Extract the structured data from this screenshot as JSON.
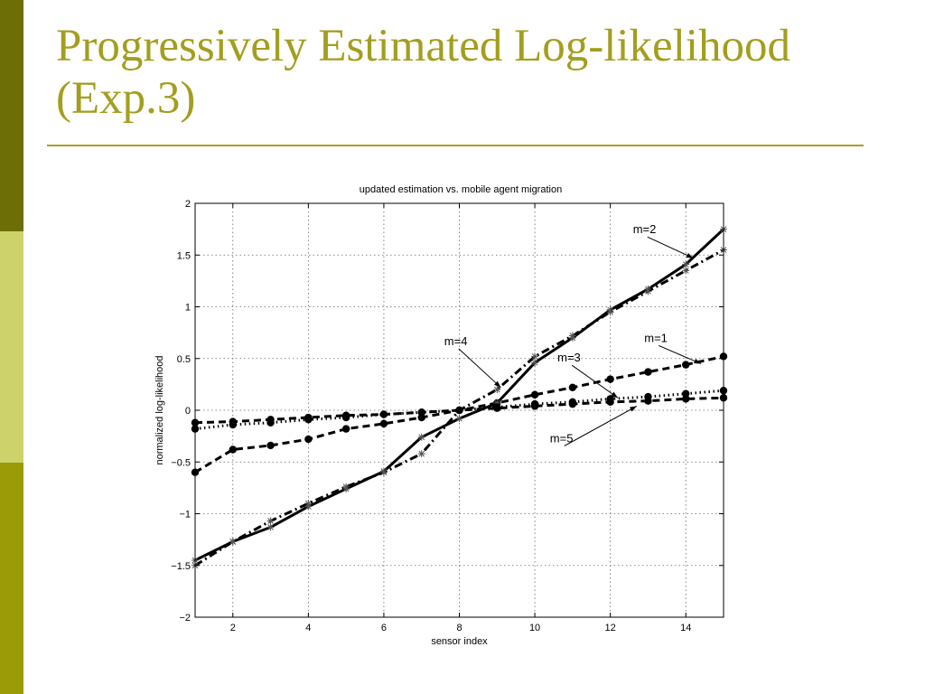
{
  "slide": {
    "title_line1": "Progressively Estimated Log-likelihood",
    "title_line2": "(Exp.3)",
    "colors": {
      "title": "#a39e1f",
      "rule": "#a7a21e",
      "sidebar": [
        "#6e6e06",
        "#cdd36a",
        "#9b9b08"
      ]
    }
  },
  "chart_data": {
    "type": "line",
    "title": "updated estimation vs. mobile agent migration",
    "xlabel": "sensor index",
    "ylabel": "normalized log-likelihood",
    "xlim": [
      1,
      15
    ],
    "ylim": [
      -2,
      2
    ],
    "xticks": [
      2,
      4,
      6,
      8,
      10,
      12,
      14
    ],
    "yticks": [
      -2,
      -1.5,
      -1,
      -0.5,
      0,
      0.5,
      1,
      1.5,
      2
    ],
    "grid": true,
    "series": [
      {
        "name": "m=1",
        "style": "dashed",
        "marker": "dot",
        "x": [
          1,
          2,
          3,
          4,
          5,
          6,
          7,
          8,
          9,
          10,
          11,
          12,
          13,
          14,
          15
        ],
        "values": [
          -0.6,
          -0.38,
          -0.34,
          -0.28,
          -0.18,
          -0.13,
          -0.07,
          0.0,
          0.07,
          0.15,
          0.22,
          0.3,
          0.37,
          0.44,
          0.52
        ]
      },
      {
        "name": "m=2",
        "style": "solid",
        "marker": "star",
        "x": [
          1,
          2,
          3,
          4,
          5,
          6,
          7,
          8,
          9,
          10,
          11,
          12,
          13,
          14,
          15
        ],
        "values": [
          -1.45,
          -1.27,
          -1.13,
          -0.93,
          -0.76,
          -0.59,
          -0.26,
          -0.08,
          0.07,
          0.46,
          0.7,
          0.97,
          1.17,
          1.41,
          1.75
        ]
      },
      {
        "name": "m=3",
        "style": "dotted",
        "marker": "dot",
        "x": [
          1,
          2,
          3,
          4,
          5,
          6,
          7,
          8,
          9,
          10,
          11,
          12,
          13,
          14,
          15
        ],
        "values": [
          -0.18,
          -0.14,
          -0.12,
          -0.09,
          -0.07,
          -0.04,
          -0.02,
          0.0,
          0.03,
          0.06,
          0.08,
          0.11,
          0.13,
          0.16,
          0.19
        ]
      },
      {
        "name": "m=4",
        "style": "dashdot",
        "marker": "star",
        "x": [
          1,
          2,
          3,
          4,
          5,
          6,
          7,
          8,
          9,
          10,
          11,
          12,
          13,
          14,
          15
        ],
        "values": [
          -1.5,
          -1.27,
          -1.07,
          -0.9,
          -0.74,
          -0.6,
          -0.42,
          0.0,
          0.2,
          0.52,
          0.72,
          0.95,
          1.15,
          1.35,
          1.55
        ]
      },
      {
        "name": "m=5",
        "style": "dashed",
        "marker": "dot",
        "x": [
          1,
          2,
          3,
          4,
          5,
          6,
          7,
          8,
          9,
          10,
          11,
          12,
          13,
          14,
          15
        ],
        "values": [
          -0.12,
          -0.11,
          -0.09,
          -0.07,
          -0.05,
          -0.04,
          -0.02,
          0.0,
          0.02,
          0.04,
          0.06,
          0.08,
          0.09,
          0.11,
          0.12
        ]
      }
    ],
    "annotations": [
      {
        "text": "m=2",
        "x": 12.6,
        "y": 1.71,
        "arrow_to": [
          14.2,
          1.47
        ]
      },
      {
        "text": "m=4",
        "x": 7.6,
        "y": 0.63,
        "arrow_to": [
          9.1,
          0.22
        ]
      },
      {
        "text": "m=1",
        "x": 12.9,
        "y": 0.66,
        "arrow_to": [
          14.4,
          0.45
        ]
      },
      {
        "text": "m=3",
        "x": 10.6,
        "y": 0.47,
        "arrow_to": [
          12.2,
          0.12
        ]
      },
      {
        "text": "m=5",
        "x": 10.4,
        "y": -0.31,
        "arrow_to": [
          12.7,
          0.04
        ]
      }
    ]
  }
}
